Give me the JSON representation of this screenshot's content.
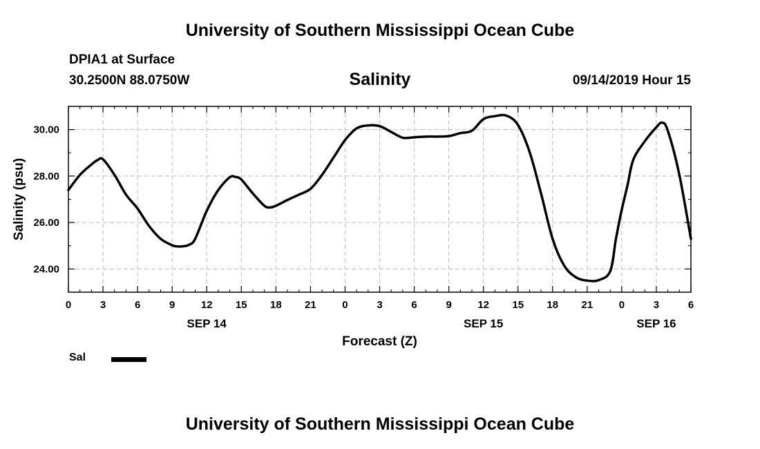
{
  "header": {
    "title": "University of Southern Mississippi Ocean Cube",
    "station": "DPIA1 at Surface",
    "coords": "30.2500N 88.0750W",
    "variable": "Salinity",
    "datetime": "09/14/2019 Hour 15"
  },
  "footer": {
    "title": "University of Southern Mississippi Ocean Cube"
  },
  "legend": {
    "label": "Sal",
    "color": "#000000"
  },
  "chart_data": {
    "type": "line",
    "title": "Salinity",
    "xlabel": "Forecast (Z)",
    "ylabel": "Salinity (psu)",
    "xlim": [
      0,
      54
    ],
    "ylim": [
      23.0,
      31.0
    ],
    "grid": true,
    "x_ticks": [
      0,
      3,
      6,
      9,
      12,
      15,
      18,
      21,
      24,
      27,
      30,
      33,
      36,
      39,
      42,
      45,
      48,
      51,
      54
    ],
    "x_tick_labels": [
      "0",
      "3",
      "6",
      "9",
      "12",
      "15",
      "18",
      "21",
      "0",
      "3",
      "6",
      "9",
      "12",
      "15",
      "18",
      "21",
      "0",
      "3",
      "6"
    ],
    "date_labels": [
      {
        "x": 12,
        "label": "SEP 14"
      },
      {
        "x": 36,
        "label": "SEP 15"
      },
      {
        "x": 51,
        "label": "SEP 16"
      }
    ],
    "y_ticks": [
      24,
      26,
      28,
      30
    ],
    "y_tick_labels": [
      "24.00",
      "26.00",
      "28.00",
      "30.00"
    ],
    "series": [
      {
        "name": "Sal",
        "color": "#000000",
        "x": [
          0,
          1,
          2,
          2.5,
          3,
          4,
          5,
          6,
          7,
          8,
          9,
          9.5,
          10,
          10.5,
          11,
          12,
          13,
          14,
          14.5,
          15,
          16,
          17,
          17.5,
          18,
          19,
          20,
          21,
          22,
          23,
          24,
          25,
          26,
          27,
          28,
          29,
          30,
          31,
          32,
          33,
          34,
          35,
          36,
          37,
          38,
          39,
          40,
          41,
          42,
          43,
          44,
          45,
          46,
          47,
          47.5,
          48,
          48.5,
          49,
          50,
          51,
          51.5,
          52,
          53,
          54
        ],
        "values": [
          27.4,
          28.05,
          28.5,
          28.68,
          28.72,
          28.05,
          27.2,
          26.6,
          25.85,
          25.3,
          25.02,
          24.97,
          24.98,
          25.05,
          25.3,
          26.5,
          27.4,
          27.95,
          27.96,
          27.85,
          27.25,
          26.72,
          26.65,
          26.72,
          26.97,
          27.2,
          27.45,
          28.05,
          28.8,
          29.55,
          30.05,
          30.18,
          30.15,
          29.9,
          29.65,
          29.67,
          29.7,
          29.7,
          29.72,
          29.85,
          29.95,
          30.45,
          30.58,
          30.6,
          30.2,
          29.05,
          27.25,
          25.3,
          24.15,
          23.65,
          23.5,
          23.52,
          23.9,
          25.3,
          26.55,
          27.6,
          28.7,
          29.5,
          30.1,
          30.3,
          29.95,
          28.05,
          25.3
        ]
      }
    ]
  }
}
